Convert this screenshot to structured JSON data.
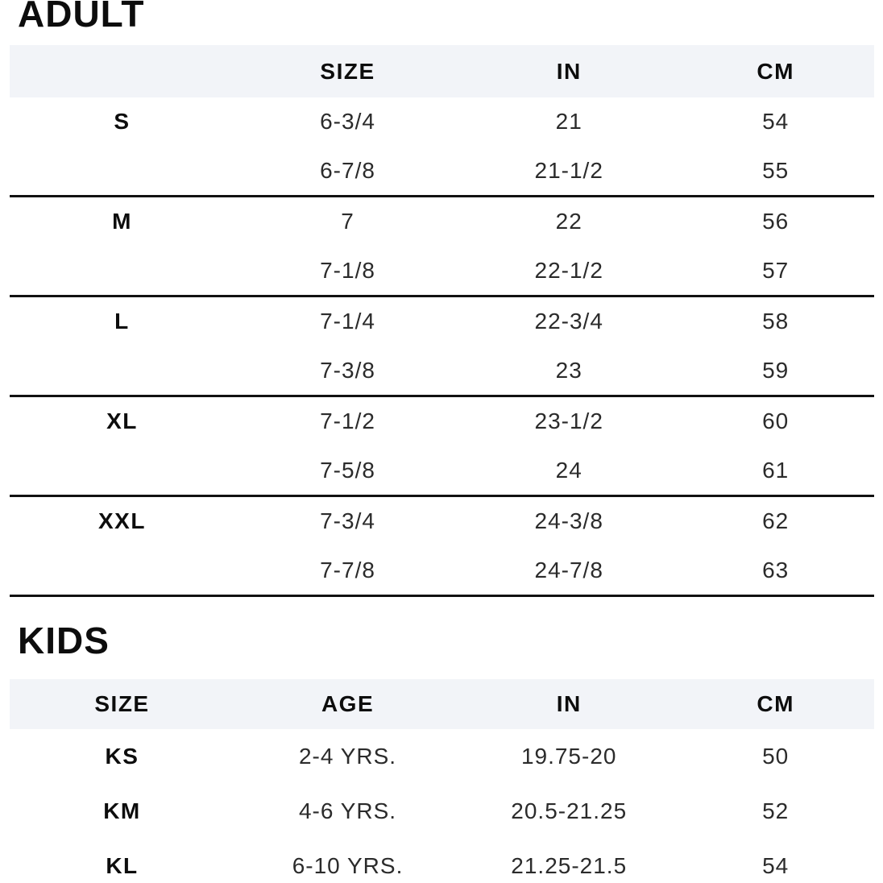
{
  "colors": {
    "header_band_bg": "#f2f4f8",
    "text": "#2b2b2b",
    "bold_text": "#0d0d0d",
    "rule": "#111111"
  },
  "adult_section": {
    "title": "ADULT",
    "header": {
      "size": "SIZE",
      "in": "IN",
      "cm": "CM"
    },
    "groups": [
      {
        "label": "S",
        "rows": [
          {
            "size": "6-3/4",
            "in": "21",
            "cm": "54"
          },
          {
            "size": "6-7/8",
            "in": "21-1/2",
            "cm": "55"
          }
        ]
      },
      {
        "label": "M",
        "rows": [
          {
            "size": "7",
            "in": "22",
            "cm": "56"
          },
          {
            "size": "7-1/8",
            "in": "22-1/2",
            "cm": "57"
          }
        ]
      },
      {
        "label": "L",
        "rows": [
          {
            "size": "7-1/4",
            "in": "22-3/4",
            "cm": "58"
          },
          {
            "size": "7-3/8",
            "in": "23",
            "cm": "59"
          }
        ]
      },
      {
        "label": "XL",
        "rows": [
          {
            "size": "7-1/2",
            "in": "23-1/2",
            "cm": "60"
          },
          {
            "size": "7-5/8",
            "in": "24",
            "cm": "61"
          }
        ]
      },
      {
        "label": "XXL",
        "rows": [
          {
            "size": "7-3/4",
            "in": "24-3/8",
            "cm": "62"
          },
          {
            "size": "7-7/8",
            "in": "24-7/8",
            "cm": "63"
          }
        ]
      }
    ]
  },
  "kids_section": {
    "title": "KIDS",
    "header": {
      "size": "SIZE",
      "age": "AGE",
      "in": "IN",
      "cm": "CM"
    },
    "rows": [
      {
        "size": "KS",
        "age": "2-4 YRS.",
        "in": "19.75-20",
        "cm": "50"
      },
      {
        "size": "KM",
        "age": "4-6 YRS.",
        "in": "20.5-21.25",
        "cm": "52"
      },
      {
        "size": "KL",
        "age": "6-10 YRS.",
        "in": "21.25-21.5",
        "cm": "54"
      }
    ]
  },
  "chart_data": [
    {
      "type": "table",
      "title": "ADULT",
      "columns": [
        "",
        "SIZE",
        "IN",
        "CM"
      ],
      "rows": [
        [
          "S",
          "6-3/4",
          "21",
          "54"
        ],
        [
          "",
          "6-7/8",
          "21-1/2",
          "55"
        ],
        [
          "M",
          "7",
          "22",
          "56"
        ],
        [
          "",
          "7-1/8",
          "22-1/2",
          "57"
        ],
        [
          "L",
          "7-1/4",
          "22-3/4",
          "58"
        ],
        [
          "",
          "7-3/8",
          "23",
          "59"
        ],
        [
          "XL",
          "7-1/2",
          "23-1/2",
          "60"
        ],
        [
          "",
          "7-5/8",
          "24",
          "61"
        ],
        [
          "XXL",
          "7-3/4",
          "24-3/8",
          "62"
        ],
        [
          "",
          "7-7/8",
          "24-7/8",
          "63"
        ]
      ]
    },
    {
      "type": "table",
      "title": "KIDS",
      "columns": [
        "SIZE",
        "AGE",
        "IN",
        "CM"
      ],
      "rows": [
        [
          "KS",
          "2-4 YRS.",
          "19.75-20",
          "50"
        ],
        [
          "KM",
          "4-6 YRS.",
          "20.5-21.25",
          "52"
        ],
        [
          "KL",
          "6-10 YRS.",
          "21.25-21.5",
          "54"
        ]
      ]
    }
  ]
}
